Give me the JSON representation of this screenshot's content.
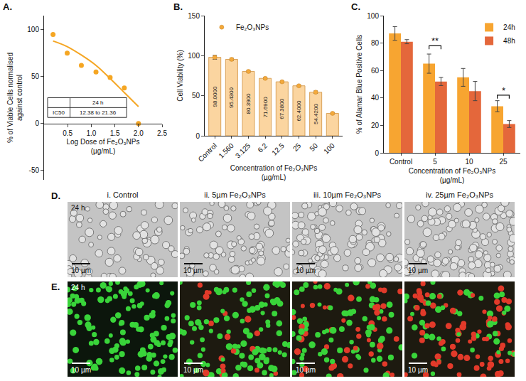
{
  "chart_data": [
    {
      "type": "scatter",
      "panel": "A.",
      "x_label": "Log Dose of Fe₂O₃NPs (µg/mL)",
      "y_label": "% of Viable Cells normalised against control",
      "series": [
        {
          "type": "scatter",
          "marker": "circle",
          "color": "#f5a623",
          "x": [
            0.19,
            0.49,
            0.79,
            1.1,
            1.4,
            1.7,
            2.0
          ],
          "values": [
            95,
            75,
            62,
            55,
            49,
            38,
            0
          ]
        },
        {
          "type": "line",
          "line_style": "solid",
          "color": "#f5a623",
          "x": [
            0.19,
            0.49,
            0.79,
            1.1,
            1.4,
            1.7,
            2.0
          ],
          "values": [
            88,
            82,
            73,
            62,
            48,
            33,
            18
          ]
        }
      ],
      "xlim": [
        0,
        2.5
      ],
      "xticks": [
        0.5,
        {
          "value": 1,
          "label": "1.0"
        },
        1.5,
        {
          "value": 2,
          "label": "2.0"
        },
        2.5
      ],
      "ylim": [
        -60,
        115
      ],
      "yticks": [
        -50,
        0,
        50,
        100
      ],
      "grid": false,
      "inset_table": {
        "header": "24 h",
        "row_label": "IC50",
        "row_value": "12.38 to 21.36"
      }
    },
    {
      "type": "bar",
      "panel": "B.",
      "x_label": "Concentration of  Fe₂O₃NPs (µg/mL)",
      "y_label": "Cell Viability (%)",
      "categories": [
        "Control",
        "1.560",
        "3.125",
        "6.2",
        "12.5",
        "25",
        "50",
        "100"
      ],
      "series": [
        {
          "name": "Fe₂O₃NPs",
          "color": "#fbd5a0",
          "marker": "circle",
          "values": [
            98.0,
            95.43,
            80.39,
            71.69,
            67.38,
            62.4,
            54.42,
            28
          ],
          "value_labels": [
            "98.0000",
            "95.4300",
            "80.3900",
            "71.6900",
            "67.3800",
            "62.4000",
            "54.4200",
            null
          ],
          "errors": [
            2.5,
            1.5,
            1.2,
            1,
            1,
            1,
            1.5,
            1
          ]
        }
      ],
      "ylim": [
        0,
        150
      ],
      "yticks": [
        0,
        50,
        100,
        150
      ],
      "data_labels": true,
      "legend": "top-left",
      "grid": false
    },
    {
      "type": "bar",
      "panel": "C.",
      "x_label": "Concentration of Fe₂O₃NPs (µg/mL)",
      "y_label": "% of Alamar Blue Positive Cells",
      "categories": [
        "Control",
        "5",
        "10",
        "25"
      ],
      "series": [
        {
          "name": "24h",
          "color": "#f7a531",
          "values": [
            87,
            65,
            55,
            34
          ],
          "errors": [
            5,
            7,
            6.5,
            4
          ]
        },
        {
          "name": "48h",
          "color": "#e4673b",
          "values": [
            81,
            52,
            45,
            21
          ],
          "errors": [
            1.5,
            3,
            7,
            2.5
          ]
        }
      ],
      "ylim": [
        0,
        100
      ],
      "yticks": [
        0,
        20,
        40,
        60,
        80,
        100
      ],
      "legend": "top-right",
      "grid": false,
      "significance": [
        {
          "category": "5",
          "label": "**",
          "y": 78
        },
        {
          "category": "25",
          "label": "*",
          "y": 42
        }
      ]
    }
  ],
  "image_panels": {
    "D": {
      "panel": "D.",
      "time": "24 h",
      "titles": [
        "i. Control",
        "ii. 5µm Fe₂O₃NPs",
        "iii. 10µm Fe₂O₃NPs",
        "iv. 25µm Fe₂O₃NPs"
      ],
      "scale_bar": "10 µm"
    },
    "E": {
      "panel": "E.",
      "time": "24 h",
      "scale_bar": "10 µm"
    }
  }
}
